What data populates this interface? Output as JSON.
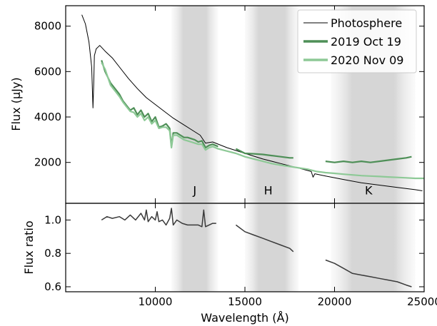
{
  "chart_data": [
    {
      "type": "line",
      "panel": "top",
      "xlabel": "",
      "ylabel": "Flux (μJy)",
      "xlim": [
        5000,
        25000
      ],
      "ylim": [
        200,
        8900
      ],
      "yticks": [
        2000,
        4000,
        6000,
        8000
      ],
      "legend_placement": "top-right",
      "bands": [
        {
          "name": "J",
          "range": [
            10900,
            13500
          ],
          "label_x": 12200,
          "label_y": 600
        },
        {
          "name": "H",
          "range": [
            15000,
            18000
          ],
          "label_x": 16300,
          "label_y": 600
        },
        {
          "name": "K",
          "range": [
            19800,
            24500
          ],
          "label_x": 21900,
          "label_y": 600
        }
      ],
      "series": [
        {
          "name": "Photosphere",
          "color": "#000000",
          "x": [
            5900,
            6100,
            6300,
            6450,
            6520,
            6560,
            6600,
            6700,
            6900,
            7200,
            7600,
            8000,
            8500,
            9000,
            9500,
            10000,
            10500,
            11000,
            11500,
            12000,
            12500,
            12800,
            13200,
            14000,
            15000,
            16000,
            17000,
            18000,
            18700,
            18800,
            18900,
            19500,
            20500,
            21500,
            22500,
            23500,
            24500,
            24900
          ],
          "y": [
            8500,
            8100,
            7300,
            6200,
            4400,
            5400,
            6700,
            7000,
            7150,
            6900,
            6600,
            6200,
            5700,
            5250,
            4850,
            4550,
            4250,
            3950,
            3700,
            3450,
            3200,
            2850,
            2900,
            2650,
            2400,
            2150,
            1950,
            1750,
            1600,
            1350,
            1500,
            1400,
            1250,
            1100,
            1000,
            900,
            800,
            750
          ]
        },
        {
          "name": "2019 Oct 19",
          "color": "#4e8f57",
          "segments": [
            {
              "x": [
                7000,
                7200,
                7500,
                7800,
                8000,
                8200,
                8400,
                8600,
                8800,
                9000,
                9200,
                9400,
                9600,
                9800,
                10000,
                10200,
                10400,
                10600,
                10800,
                10900,
                11000,
                11200,
                11400,
                11600,
                11800,
                12000,
                12200,
                12400,
                12600,
                12800,
                13000,
                13200,
                13500
              ],
              "y": [
                6500,
                6000,
                5500,
                5200,
                5000,
                4700,
                4500,
                4300,
                4400,
                4100,
                4300,
                4000,
                4150,
                3800,
                4000,
                3550,
                3600,
                3700,
                3500,
                2700,
                3300,
                3300,
                3200,
                3100,
                3100,
                3050,
                3000,
                2900,
                2950,
                2650,
                2750,
                2800,
                2700
              ]
            },
            {
              "x": [
                14500,
                15000,
                15500,
                16000,
                16500,
                17000,
                17500,
                17700
              ],
              "y": [
                2600,
                2400,
                2380,
                2350,
                2300,
                2250,
                2200,
                2200
              ]
            },
            {
              "x": [
                19500,
                20000,
                20500,
                21000,
                21500,
                22000,
                22500,
                23000,
                23500,
                24000,
                24300
              ],
              "y": [
                2050,
                2000,
                2050,
                2000,
                2050,
                2000,
                2050,
                2100,
                2150,
                2200,
                2250
              ]
            }
          ]
        },
        {
          "name": "2020 Nov 09",
          "color": "#8dc996",
          "segments": [
            {
              "x": [
                7000,
                7200,
                7500,
                7800,
                8000,
                8200,
                8400,
                8600,
                8800,
                9000,
                9200,
                9400,
                9600,
                9800,
                10000,
                10200,
                10400,
                10600,
                10800,
                10900,
                11000,
                11200,
                11400,
                11600,
                11800,
                12000,
                12200,
                12400,
                12600,
                12800,
                13000,
                13200,
                13500,
                14000,
                14500,
                15000,
                15500,
                16000,
                16500,
                17000,
                17500,
                18000,
                18500,
                19000,
                19500,
                20000,
                20500,
                21000,
                21500,
                22000,
                22500,
                23000,
                23500,
                24000,
                24500,
                25000
              ],
              "y": [
                6400,
                6100,
                5400,
                5100,
                4900,
                4650,
                4450,
                4250,
                4200,
                4000,
                4150,
                3850,
                4000,
                3700,
                3850,
                3500,
                3550,
                3550,
                3400,
                2650,
                3200,
                3200,
                3100,
                3000,
                2950,
                2900,
                2850,
                2800,
                2800,
                2550,
                2650,
                2700,
                2600,
                2500,
                2400,
                2250,
                2150,
                2050,
                1950,
                1880,
                1820,
                1760,
                1700,
                1600,
                1550,
                1520,
                1480,
                1450,
                1420,
                1400,
                1380,
                1360,
                1340,
                1320,
                1300,
                1300
              ]
            }
          ]
        }
      ]
    },
    {
      "type": "line",
      "panel": "bottom",
      "xlabel": "Wavelength (Å)",
      "ylabel": "Flux ratio",
      "xlim": [
        5000,
        25000
      ],
      "ylim": [
        0.57,
        1.1
      ],
      "yticks": [
        0.6,
        0.8,
        1.0
      ],
      "xticks": [
        10000,
        15000,
        20000,
        25000
      ],
      "bands": [
        {
          "name": "J",
          "range": [
            10900,
            13500
          ]
        },
        {
          "name": "H",
          "range": [
            15000,
            18000
          ]
        },
        {
          "name": "K",
          "range": [
            19800,
            24500
          ]
        }
      ],
      "series": [
        {
          "name": "",
          "color": "#3a3a3a",
          "segments": [
            {
              "x": [
                7000,
                7300,
                7600,
                8000,
                8300,
                8600,
                8900,
                9200,
                9400,
                9500,
                9600,
                9800,
                10000,
                10100,
                10200,
                10400,
                10600,
                10800,
                10900,
                11000,
                11200,
                11500,
                11800,
                12100,
                12400,
                12600,
                12700,
                12800,
                13000,
                13200,
                13400
              ],
              "y": [
                1.0,
                1.02,
                1.01,
                1.02,
                1.0,
                1.03,
                1.0,
                1.04,
                1.0,
                1.06,
                0.99,
                1.02,
                1.0,
                1.05,
                0.99,
                1.0,
                0.97,
                1.01,
                1.07,
                0.97,
                1.0,
                0.98,
                0.97,
                0.97,
                0.97,
                0.96,
                1.06,
                0.96,
                0.97,
                0.98,
                0.98
              ]
            },
            {
              "x": [
                14500,
                15000,
                15500,
                16000,
                16500,
                17000,
                17500,
                17700
              ],
              "y": [
                0.97,
                0.93,
                0.91,
                0.89,
                0.87,
                0.85,
                0.83,
                0.81
              ]
            },
            {
              "x": [
                19500,
                20000,
                20500,
                21000,
                21500,
                22000,
                22500,
                23000,
                23500,
                24000,
                24300
              ],
              "y": [
                0.76,
                0.74,
                0.71,
                0.68,
                0.67,
                0.66,
                0.65,
                0.64,
                0.63,
                0.61,
                0.6
              ]
            }
          ]
        }
      ]
    }
  ]
}
